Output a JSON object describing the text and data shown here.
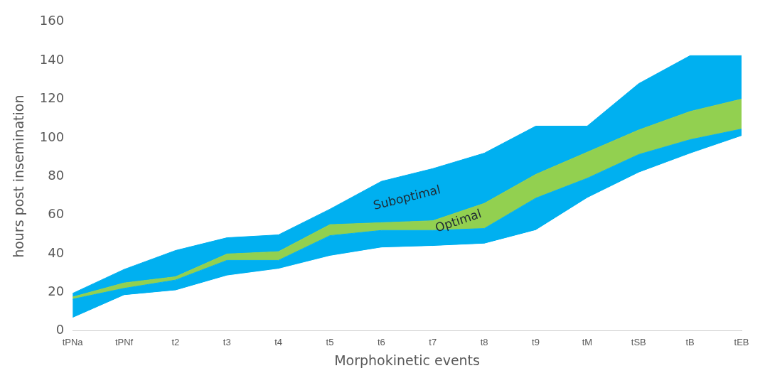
{
  "chart_data": {
    "type": "area",
    "stacked": true,
    "xlabel": "Morphokinetic events",
    "ylabel": "hours post insemination",
    "categories": [
      "tPNa",
      "tPNf",
      "t2",
      "t3",
      "t4",
      "t5",
      "t6",
      "t7",
      "t8",
      "t9",
      "tM",
      "tSB",
      "tB",
      "tEB"
    ],
    "series": [
      {
        "color": "#ffffff",
        "values": [
          6.6,
          18.3,
          20.8,
          28.5,
          32,
          38.7,
          43,
          43.8,
          45,
          52,
          68.7,
          81.8,
          91.7,
          100.8
        ]
      },
      {
        "color": "#00b0f0",
        "values": [
          9.8,
          3.7,
          5.5,
          8,
          4.5,
          10.6,
          9,
          8.2,
          8,
          16.7,
          10.3,
          9.5,
          7.3,
          3.7
        ]
      },
      {
        "name": "Optimal",
        "color": "#92d050",
        "values": [
          1.1,
          2.8,
          1.7,
          3.3,
          4.5,
          5.7,
          4,
          5,
          13,
          12.3,
          13.5,
          12.7,
          14.6,
          15.5
        ]
      },
      {
        "name": "Suboptimal",
        "color": "#00b0f0",
        "values": [
          1.9,
          7,
          13.6,
          8.4,
          8.7,
          8,
          21.4,
          27,
          26,
          25,
          13.5,
          24,
          28.9,
          22.5
        ]
      }
    ],
    "ylim": [
      0,
      160
    ],
    "yticks": [
      0,
      20,
      40,
      60,
      80,
      100,
      120,
      140,
      160
    ],
    "grid": false,
    "legend": false
  }
}
